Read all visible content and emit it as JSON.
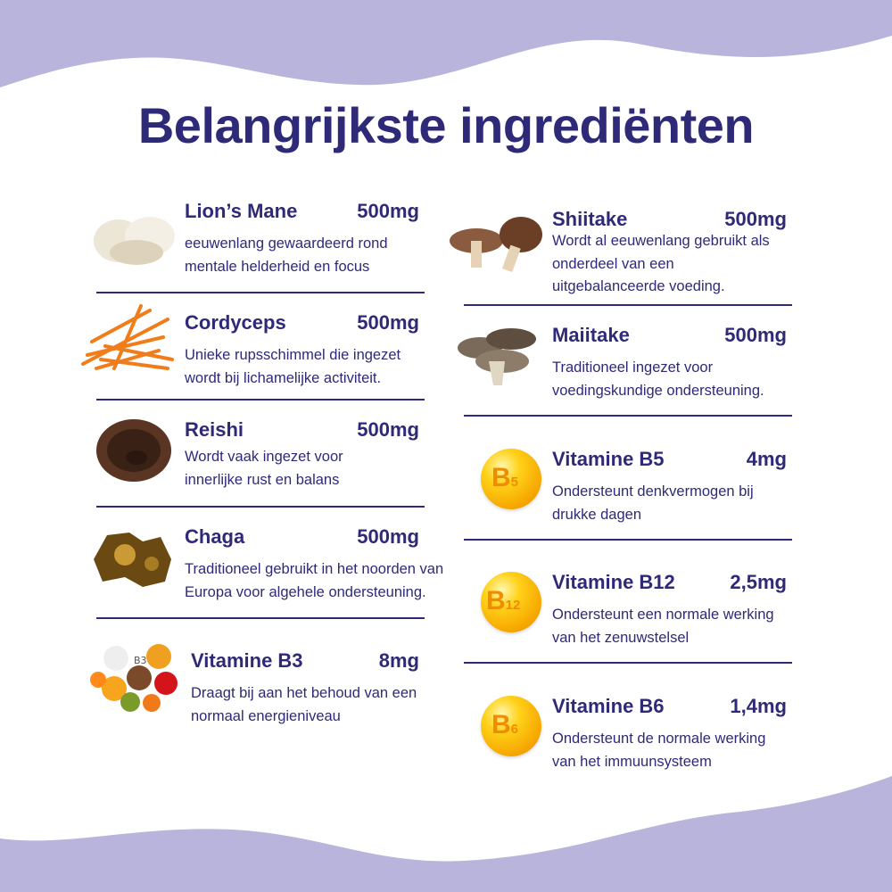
{
  "title": "Belangrijkste ingrediënten",
  "colors": {
    "text": "#2e2a78",
    "wave": "#b8b4dc",
    "vitamin": "#f7a800"
  },
  "left": [
    {
      "name": "Lion’s Mane",
      "dose": "500mg",
      "desc": [
        "eeuwenlang gewaardeerd rond",
        "mentale helderheid en focus"
      ],
      "icon": "lions-mane-mushroom"
    },
    {
      "name": "Cordyceps",
      "dose": "500mg",
      "desc": [
        "Unieke rupsschimmel die ingezet",
        "wordt bij lichamelijke activiteit."
      ],
      "icon": "cordyceps-fungus"
    },
    {
      "name": "Reishi",
      "dose": "500mg",
      "desc": [
        "Wordt vaak ingezet voor",
        "innerlijke rust en balans"
      ],
      "icon": "reishi-mushroom"
    },
    {
      "name": "Chaga",
      "dose": "500mg",
      "desc": [
        "Traditioneel gebruikt in het noorden van",
        "Europa voor algehele ondersteuning."
      ],
      "icon": "chaga-fungus"
    },
    {
      "name": "Vitamine B3",
      "dose": "8mg",
      "desc": [
        "Draagt bij aan het behoud van een",
        "normaal energieniveau"
      ],
      "icon": "b3-foods",
      "badge": "B3"
    }
  ],
  "right": [
    {
      "name": "Shiitake",
      "dose": "500mg",
      "desc": [
        "Wordt al eeuwenlang gebruikt als",
        "onderdeel van een",
        "uitgebalanceerde voeding."
      ],
      "icon": "shiitake-mushroom"
    },
    {
      "name": "Maiitake",
      "dose": "500mg",
      "desc": [
        "Traditioneel ingezet voor",
        "voedingskundige ondersteuning."
      ],
      "icon": "maitake-mushroom"
    },
    {
      "name": "Vitamine B5",
      "dose": "4mg",
      "desc": [
        "Ondersteunt denkvermogen bij",
        "drukke dagen"
      ],
      "icon": "vitamin-capsule",
      "badge": "B",
      "sub": "5"
    },
    {
      "name": "Vitamine B12",
      "dose": "2,5mg",
      "desc": [
        "Ondersteunt een normale werking",
        "van het zenuwstelsel"
      ],
      "icon": "vitamin-capsule",
      "badge": "B",
      "sub": "12"
    },
    {
      "name": "Vitamine B6",
      "dose": "1,4mg",
      "desc": [
        "Ondersteunt de normale werking",
        "van het immuunsysteem"
      ],
      "icon": "vitamin-capsule",
      "badge": "B",
      "sub": "6"
    }
  ]
}
